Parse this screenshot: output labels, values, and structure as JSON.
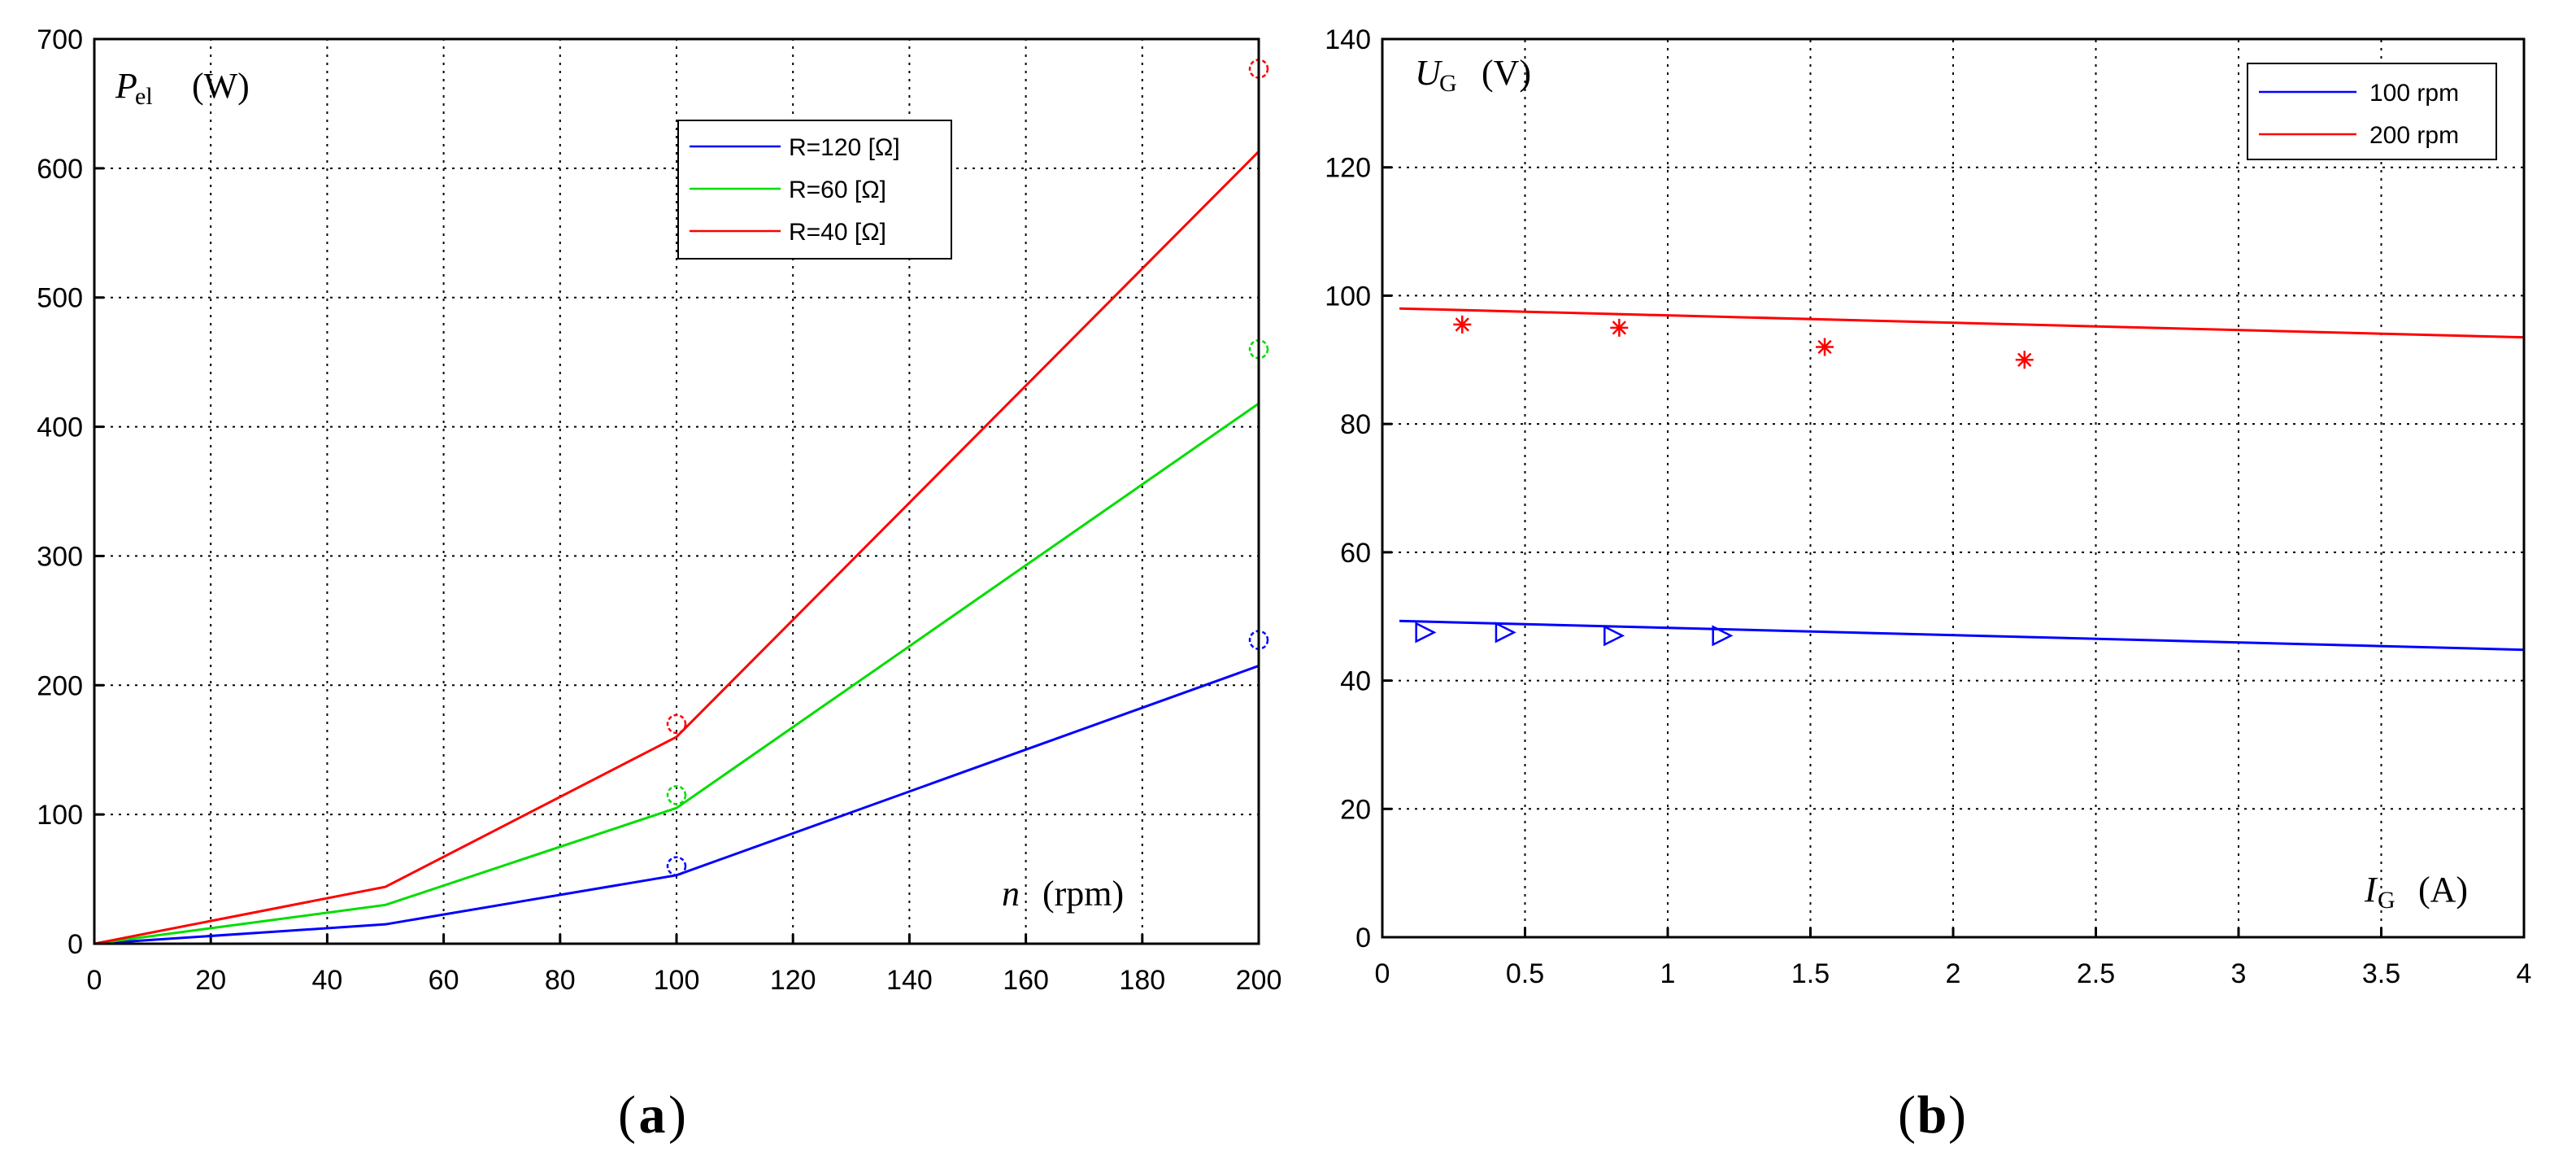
{
  "chart_data": [
    {
      "type": "line",
      "caption_letter": "a",
      "ylabel_main": "P",
      "ylabel_sub": "el",
      "ylabel_unit": "(W)",
      "xlabel_main": "n",
      "xlabel_unit": "(rpm)",
      "xlim": [
        0,
        200
      ],
      "ylim": [
        0,
        700
      ],
      "xticks": [
        0,
        20,
        40,
        60,
        80,
        100,
        120,
        140,
        160,
        180,
        200
      ],
      "yticks": [
        0,
        100,
        200,
        300,
        400,
        500,
        600,
        700
      ],
      "grid": true,
      "legend_position": "top-right",
      "series": [
        {
          "name": "R=120 [Ω]",
          "color": "#0000ff",
          "x": [
            0,
            50,
            100,
            200
          ],
          "y": [
            0,
            15,
            53,
            215
          ],
          "marker": "circle",
          "points_x": [
            100,
            200
          ],
          "points_y": [
            60,
            235
          ]
        },
        {
          "name": "R=60 [Ω]",
          "color": "#00dd00",
          "x": [
            0,
            50,
            100,
            200
          ],
          "y": [
            0,
            30,
            105,
            418
          ],
          "marker": "circle",
          "points_x": [
            100,
            200
          ],
          "points_y": [
            115,
            460
          ]
        },
        {
          "name": "R=40 [Ω]",
          "color": "#ff0000",
          "x": [
            0,
            50,
            100,
            200
          ],
          "y": [
            0,
            44,
            160,
            613
          ],
          "marker": "circle",
          "points_x": [
            100,
            200
          ],
          "points_y": [
            170,
            677
          ]
        }
      ]
    },
    {
      "type": "line",
      "caption_letter": "b",
      "ylabel_main": "U",
      "ylabel_sub": "G",
      "ylabel_unit": "(V)",
      "xlabel_main": "I",
      "xlabel_sub": "G",
      "xlabel_unit": "(A)",
      "xlim": [
        0,
        4
      ],
      "ylim": [
        0,
        140
      ],
      "xticks": [
        0,
        0.5,
        1,
        1.5,
        2,
        2.5,
        3,
        3.5,
        4
      ],
      "yticks": [
        0,
        20,
        40,
        60,
        80,
        100,
        120,
        140
      ],
      "grid": true,
      "legend_position": "top-right",
      "series": [
        {
          "name": "100 rpm",
          "color": "#0000ff",
          "x": [
            0.06,
            4
          ],
          "y": [
            49.3,
            44.8
          ],
          "marker": "triangle-right",
          "points_x": [
            0.15,
            0.43,
            0.81,
            1.19
          ],
          "points_y": [
            47.5,
            47.5,
            47,
            47
          ]
        },
        {
          "name": "200 rpm",
          "color": "#ff0000",
          "x": [
            0.06,
            4
          ],
          "y": [
            98,
            93.5
          ],
          "marker": "star",
          "points_x": [
            0.28,
            0.83,
            1.55,
            2.25
          ],
          "points_y": [
            95.5,
            95,
            92,
            90
          ]
        }
      ]
    }
  ]
}
